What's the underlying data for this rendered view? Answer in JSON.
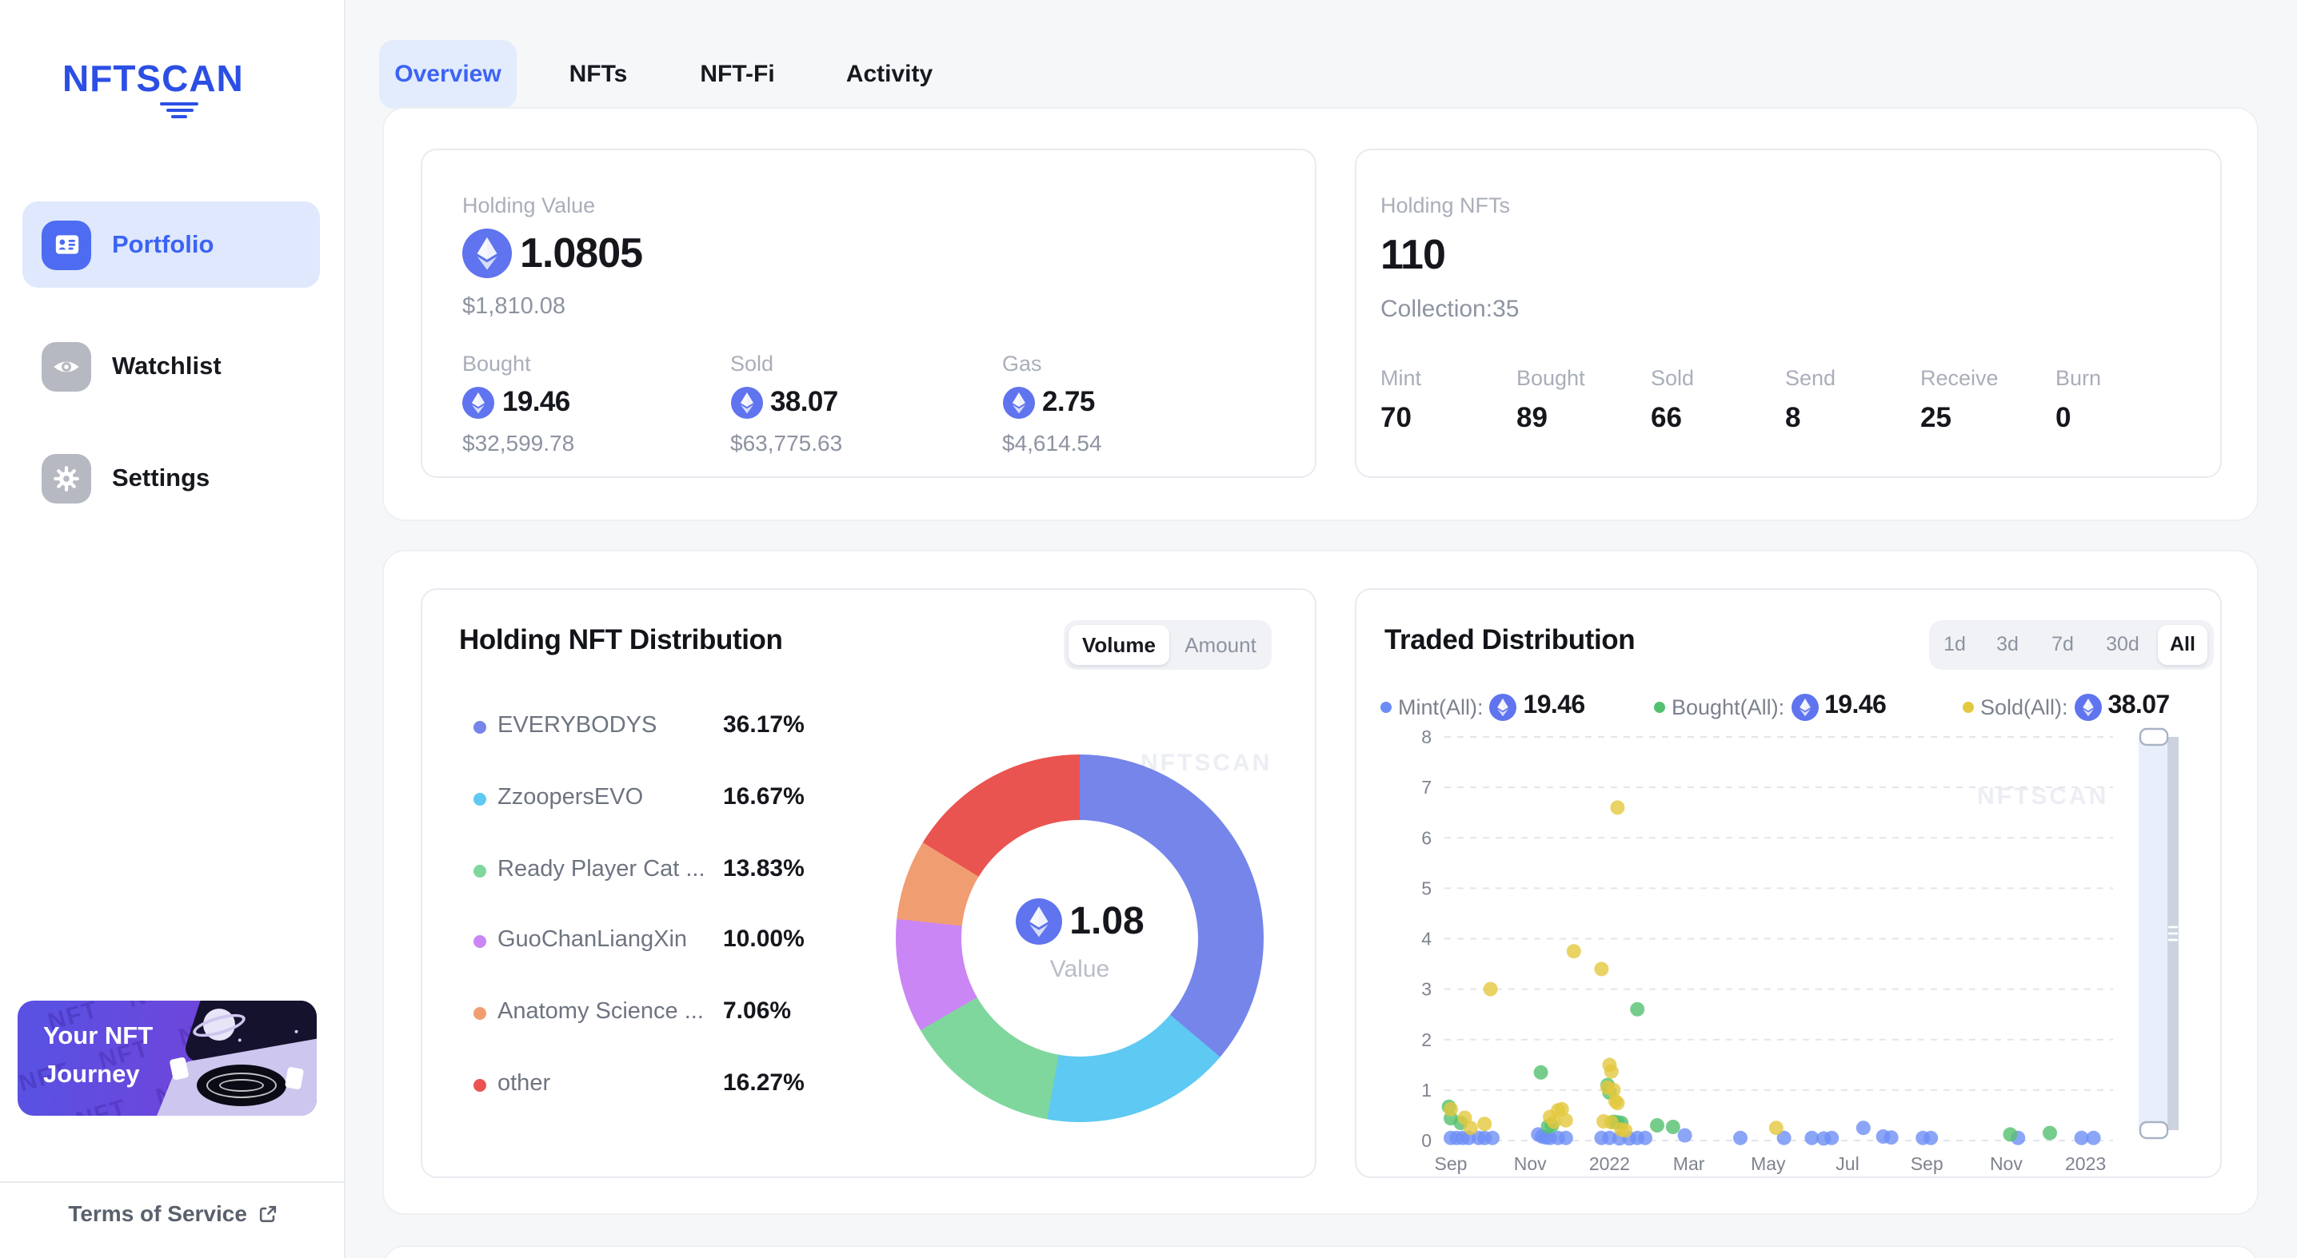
{
  "sidebar": {
    "logo": "NFTSCAN",
    "items": [
      {
        "label": "Portfolio",
        "active": true
      },
      {
        "label": "Watchlist",
        "active": false
      },
      {
        "label": "Settings",
        "active": false
      }
    ],
    "banner": {
      "line1": "Your NFT",
      "line2": "Journey",
      "pattern_word": "NFT"
    },
    "terms_label": "Terms of Service"
  },
  "tabs": [
    {
      "label": "Overview",
      "active": true
    },
    {
      "label": "NFTs",
      "active": false
    },
    {
      "label": "NFT-Fi",
      "active": false
    },
    {
      "label": "Activity",
      "active": false
    }
  ],
  "summary": {
    "holding_value": {
      "label": "Holding Value",
      "eth": "1.0805",
      "usd": "$1,810.08",
      "stats": [
        {
          "label": "Bought",
          "eth": "19.46",
          "usd": "$32,599.78"
        },
        {
          "label": "Sold",
          "eth": "38.07",
          "usd": "$63,775.63"
        },
        {
          "label": "Gas",
          "eth": "2.75",
          "usd": "$4,614.54"
        }
      ]
    },
    "holding_nfts": {
      "label": "Holding NFTs",
      "count": "110",
      "collection": "Collection:35",
      "stats": [
        {
          "label": "Mint",
          "value": "70"
        },
        {
          "label": "Bought",
          "value": "89"
        },
        {
          "label": "Sold",
          "value": "66"
        },
        {
          "label": "Send",
          "value": "8"
        },
        {
          "label": "Receive",
          "value": "25"
        },
        {
          "label": "Burn",
          "value": "0"
        }
      ]
    }
  },
  "distribution": {
    "title": "Holding NFT Distribution",
    "toggle": {
      "active": "Volume",
      "inactive": "Amount"
    },
    "center": {
      "eth": "1.08",
      "label": "Value"
    },
    "watermark": "NFTSCAN"
  },
  "traded": {
    "title": "Traded Distribution",
    "ranges": [
      "1d",
      "3d",
      "7d",
      "30d",
      "All"
    ],
    "active_range": "All",
    "watermark": "NFTSCAN"
  },
  "colors": {
    "accent_blue": "#3c63f4",
    "eth_icon": "#5f74ee",
    "mint": "#6e8ef5",
    "bought": "#54c16e",
    "sold": "#e4c83f"
  },
  "chart_data": [
    {
      "type": "pie",
      "donut": true,
      "title": "Holding NFT Distribution",
      "center_value": "1.08",
      "center_label": "Value",
      "slices": [
        {
          "label": "EVERYBODYS",
          "pct": "36.17%",
          "value": 36.17,
          "color": "#7585ea"
        },
        {
          "label": "ZzoopersEVO",
          "pct": "16.67%",
          "value": 16.67,
          "color": "#5ec9f2"
        },
        {
          "label": "Ready Player Cat ...",
          "pct": "13.83%",
          "value": 13.83,
          "color": "#80d79d"
        },
        {
          "label": "GuoChanLiangXin",
          "pct": "10.00%",
          "value": 10.0,
          "color": "#ca86f5"
        },
        {
          "label": "Anatomy Science ...",
          "pct": "7.06%",
          "value": 7.06,
          "color": "#f19d72"
        },
        {
          "label": "other",
          "pct": "16.27%",
          "value": 16.27,
          "color": "#ea5450"
        }
      ]
    },
    {
      "type": "scatter",
      "title": "Traded Distribution",
      "legend_position": "top",
      "grid": "dashed-horizontal",
      "x_axis": {
        "labels": [
          "Sep",
          "Nov",
          "2022",
          "Mar",
          "May",
          "Jul",
          "Sep",
          "Nov",
          "2023"
        ],
        "label_month_positions": [
          0,
          2,
          4,
          6,
          8,
          10,
          12,
          14,
          16
        ]
      },
      "y_axis": {
        "min": 0,
        "max": 8,
        "ticks": [
          8,
          7,
          6,
          5,
          4,
          3,
          2,
          1,
          0
        ]
      },
      "legend": [
        {
          "label": "Mint(All):",
          "value": "19.46",
          "color": "#6c8cf5"
        },
        {
          "label": "Bought(All):",
          "value": "19.46",
          "color": "#54c16e"
        },
        {
          "label": "Sold(All):",
          "value": "38.07",
          "color": "#e4c83f"
        }
      ],
      "series": [
        {
          "name": "Mint",
          "color": "#6e8ef5",
          "points": [
            [
              0.0,
              0.05
            ],
            [
              0.15,
              0.05
            ],
            [
              0.3,
              0.05
            ],
            [
              0.45,
              0.05
            ],
            [
              0.7,
              0.05
            ],
            [
              0.85,
              0.05
            ],
            [
              1.05,
              0.05
            ],
            [
              2.2,
              0.12
            ],
            [
              2.3,
              0.08
            ],
            [
              2.4,
              0.06
            ],
            [
              2.5,
              0.05
            ],
            [
              2.7,
              0.05
            ],
            [
              2.9,
              0.05
            ],
            [
              3.8,
              0.05
            ],
            [
              4.0,
              0.05
            ],
            [
              4.25,
              0.04
            ],
            [
              4.5,
              0.04
            ],
            [
              4.7,
              0.05
            ],
            [
              4.9,
              0.05
            ],
            [
              5.9,
              0.1
            ],
            [
              7.3,
              0.05
            ],
            [
              8.4,
              0.05
            ],
            [
              9.1,
              0.05
            ],
            [
              9.4,
              0.04
            ],
            [
              9.6,
              0.05
            ],
            [
              10.4,
              0.25
            ],
            [
              10.9,
              0.08
            ],
            [
              11.1,
              0.06
            ],
            [
              11.9,
              0.05
            ],
            [
              12.1,
              0.05
            ],
            [
              14.3,
              0.05
            ],
            [
              15.9,
              0.05
            ],
            [
              16.2,
              0.05
            ]
          ]
        },
        {
          "name": "Bought",
          "color": "#54c16e",
          "points": [
            [
              -0.05,
              0.67
            ],
            [
              0.0,
              0.44
            ],
            [
              0.25,
              0.35
            ],
            [
              2.27,
              1.35
            ],
            [
              2.45,
              0.28
            ],
            [
              2.55,
              0.3
            ],
            [
              3.95,
              1.1
            ],
            [
              4.0,
              0.95
            ],
            [
              4.1,
              0.37
            ],
            [
              4.2,
              0.36
            ],
            [
              4.3,
              0.35
            ],
            [
              4.7,
              2.6
            ],
            [
              5.2,
              0.3
            ],
            [
              5.6,
              0.27
            ],
            [
              14.1,
              0.12
            ],
            [
              15.1,
              0.15
            ]
          ]
        },
        {
          "name": "Sold",
          "color": "#e4c83f",
          "points": [
            [
              0.0,
              0.62
            ],
            [
              0.35,
              0.45
            ],
            [
              0.5,
              0.25
            ],
            [
              0.85,
              0.33
            ],
            [
              1.0,
              3.0
            ],
            [
              2.5,
              0.47
            ],
            [
              2.7,
              0.6
            ],
            [
              2.8,
              0.62
            ],
            [
              2.6,
              0.37
            ],
            [
              2.9,
              0.4
            ],
            [
              3.1,
              3.75
            ],
            [
              3.8,
              3.4
            ],
            [
              4.0,
              1.5
            ],
            [
              4.05,
              1.37
            ],
            [
              3.95,
              1.05
            ],
            [
              4.1,
              1.0
            ],
            [
              4.15,
              0.78
            ],
            [
              4.2,
              0.74
            ],
            [
              3.85,
              0.38
            ],
            [
              4.05,
              0.36
            ],
            [
              4.3,
              0.22
            ],
            [
              4.4,
              0.2
            ],
            [
              4.2,
              6.6
            ],
            [
              8.2,
              0.25
            ]
          ]
        }
      ]
    }
  ]
}
